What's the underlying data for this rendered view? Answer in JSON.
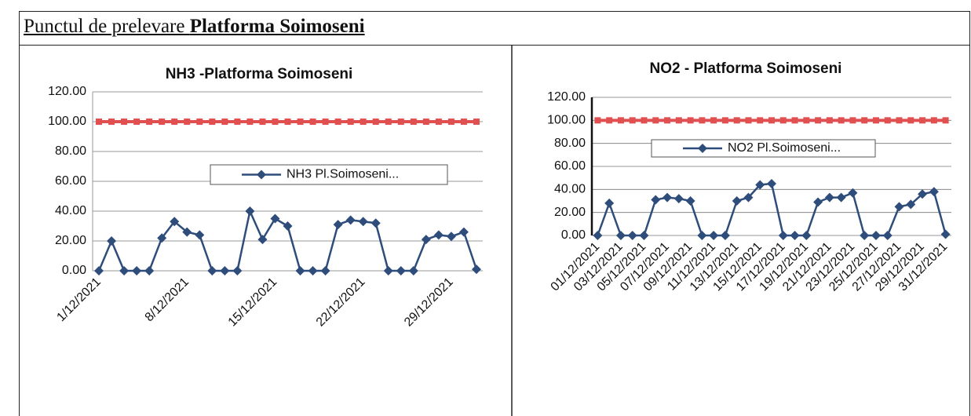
{
  "header": {
    "title": "Punctul de prelevare ",
    "title_bold": "Platforma Soimoseni"
  },
  "chart_data": [
    {
      "type": "line",
      "title": "NH3 -Platforma Soimoseni",
      "categories": [
        "1/12/2021",
        null,
        null,
        null,
        null,
        null,
        null,
        "8/12/2021",
        null,
        null,
        null,
        null,
        null,
        null,
        "15/12/2021",
        null,
        null,
        null,
        null,
        null,
        null,
        "22/12/2021",
        null,
        null,
        null,
        null,
        null,
        null,
        "29/12/2021",
        null,
        null
      ],
      "series": [
        {
          "name": "NH3 Pl.Soimoseni...",
          "color": "#2e4d7b",
          "values": [
            0,
            20,
            0,
            0,
            0,
            22,
            33,
            26,
            24,
            0,
            0,
            0,
            40,
            21,
            35,
            30,
            0,
            0,
            0,
            31,
            34,
            33,
            32,
            0,
            0,
            0,
            21,
            24,
            23,
            26,
            1
          ]
        },
        {
          "color": "#e05050",
          "values": [
            100,
            100,
            100,
            100,
            100,
            100,
            100,
            100,
            100,
            100,
            100,
            100,
            100,
            100,
            100,
            100,
            100,
            100,
            100,
            100,
            100,
            100,
            100,
            100,
            100,
            100,
            100,
            100,
            100,
            100,
            100
          ]
        }
      ],
      "ylim": [
        0,
        120
      ],
      "yticks": [
        {
          "value": 0,
          "label": "0.00"
        },
        {
          "value": 20,
          "label": "20.00"
        },
        {
          "value": 40,
          "label": "40.00"
        },
        {
          "value": 60,
          "label": "60.00"
        },
        {
          "value": 80,
          "label": "80.00"
        },
        {
          "value": 100,
          "label": "100.00"
        },
        {
          "value": 120,
          "label": "120.00"
        }
      ],
      "grid": true
    },
    {
      "type": "line",
      "title": "NO2 - Platforma Soimoseni",
      "categories": [
        "01/12/2021",
        null,
        "03/12/2021",
        null,
        "05/12/2021",
        null,
        "07/12/2021",
        null,
        "09/12/2021",
        null,
        "11/12/2021",
        null,
        "13/12/2021",
        null,
        "15/12/2021",
        null,
        "17/12/2021",
        null,
        "19/12/2021",
        null,
        "21/12/2021",
        null,
        "23/12/2021",
        null,
        "25/12/2021",
        null,
        "27/12/2021",
        null,
        "29/12/2021",
        null,
        "31/12/2021"
      ],
      "series": [
        {
          "name": "NO2 Pl.Soimoseni...",
          "color": "#2e4d7b",
          "values": [
            0,
            28,
            0,
            0,
            0,
            31,
            33,
            32,
            30,
            0,
            0,
            0,
            30,
            33,
            44,
            45,
            0,
            0,
            0,
            29,
            33,
            33,
            37,
            0,
            0,
            0,
            25,
            27,
            36,
            38,
            1
          ]
        },
        {
          "color": "#e05050",
          "values": [
            100,
            100,
            100,
            100,
            100,
            100,
            100,
            100,
            100,
            100,
            100,
            100,
            100,
            100,
            100,
            100,
            100,
            100,
            100,
            100,
            100,
            100,
            100,
            100,
            100,
            100,
            100,
            100,
            100,
            100,
            100
          ]
        }
      ],
      "ylim": [
        0,
        120
      ],
      "yticks": [
        {
          "value": 0,
          "label": "0.00"
        },
        {
          "value": 20,
          "label": "20.00"
        },
        {
          "value": 40,
          "label": "40.00"
        },
        {
          "value": 60,
          "label": "60.00"
        },
        {
          "value": 80,
          "label": "80.00"
        },
        {
          "value": 100,
          "label": "100.00"
        },
        {
          "value": 120,
          "label": "120.00"
        }
      ],
      "grid": true
    }
  ]
}
